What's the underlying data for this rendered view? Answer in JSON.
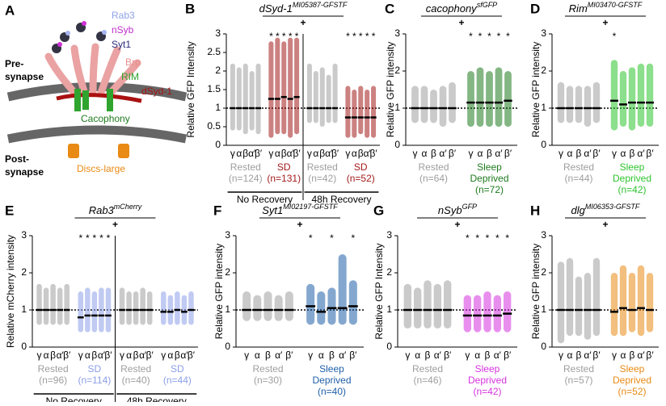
{
  "diagram": {
    "panel": "A",
    "vesicle_proteins": [
      "Rab3",
      "nSyb",
      "Syt1"
    ],
    "pre": [
      "Pre-",
      "synapse"
    ],
    "brp": "Brp",
    "rim": "RIM",
    "dsyd": "dSyd-1",
    "cacophony": "Cacophony",
    "post": [
      "Post-",
      "synapse"
    ],
    "dlg": "Discs-large"
  },
  "chart_data": [
    {
      "type": "dot",
      "panel": "B",
      "title": "dSyd-1",
      "title_sup": "MI05387-GFSTF",
      "plus": "+",
      "ylabel": "Relative GFP Intensity",
      "ylim": [
        0,
        3
      ],
      "yticks": [
        0,
        0.5,
        1,
        1.5,
        2,
        2.5,
        3
      ],
      "refline": 1,
      "categories": [
        "γ",
        "α",
        "β",
        "α′",
        "β′"
      ],
      "groups": [
        {
          "name": [
            "Rested"
          ],
          "n": "(n=124)",
          "color": "#9e9e9e",
          "means": [
            1,
            1,
            1,
            1,
            1
          ],
          "lows": [
            0.4,
            0.4,
            0.3,
            0.4,
            0.3
          ],
          "highs": [
            2.2,
            2.1,
            2.2,
            2.0,
            2.2
          ]
        },
        {
          "name": [
            "SD"
          ],
          "n": "(n=131)",
          "color": "#a31a1a",
          "means": [
            1.25,
            1.25,
            1.3,
            1.25,
            1.3
          ],
          "lows": [
            0.2,
            0.3,
            0.3,
            0.2,
            0.3
          ],
          "highs": [
            2.8,
            2.9,
            2.8,
            2.9,
            2.9
          ],
          "stars": [
            "*",
            "*",
            "*",
            "*",
            "*"
          ]
        },
        {
          "name": [
            "Rested"
          ],
          "n": "(n=42)",
          "color": "#9e9e9e",
          "means": [
            1,
            1,
            1,
            1,
            1
          ],
          "lows": [
            0.6,
            0.6,
            0.5,
            0.6,
            0.6
          ],
          "highs": [
            2.2,
            2.0,
            2.1,
            1.9,
            2.2
          ]
        },
        {
          "name": [
            "SD"
          ],
          "n": "(n=52)",
          "color": "#a31a1a",
          "means": [
            0.75,
            0.75,
            0.75,
            0.75,
            0.75
          ],
          "lows": [
            0.2,
            0.2,
            0.3,
            0.2,
            0.2
          ],
          "highs": [
            1.6,
            1.5,
            1.6,
            1.5,
            1.6
          ],
          "stars": [
            "*",
            "*",
            "*",
            "*",
            "*"
          ]
        }
      ],
      "sections": [
        {
          "label": "No Recovery",
          "groups": [
            0,
            1
          ]
        },
        {
          "label": "48h Recovery",
          "groups": [
            2,
            3
          ]
        }
      ]
    },
    {
      "type": "dot",
      "panel": "C",
      "title": "cacophony",
      "title_sup": "sfGFP",
      "plus": "+",
      "ylabel": "Relative GFP intensity",
      "ylim": [
        0,
        3
      ],
      "yticks": [
        0,
        1,
        2,
        3
      ],
      "refline": 1,
      "categories": [
        "γ",
        "α",
        "β",
        "α′",
        "β′"
      ],
      "groups": [
        {
          "name": [
            "Rested"
          ],
          "n": "(n=64)",
          "color": "#9e9e9e",
          "means": [
            1,
            1,
            1,
            1,
            1
          ],
          "lows": [
            0.6,
            0.6,
            0.6,
            0.5,
            0.6
          ],
          "highs": [
            1.6,
            1.6,
            1.5,
            1.6,
            1.7
          ]
        },
        {
          "name": [
            "Sleep",
            "Deprived"
          ],
          "n": "(n=72)",
          "color": "#1e7a1e",
          "means": [
            1.15,
            1.15,
            1.15,
            1.15,
            1.2
          ],
          "lows": [
            0.5,
            0.5,
            0.5,
            0.5,
            0.5
          ],
          "highs": [
            2.0,
            2.1,
            2.0,
            2.1,
            2.0
          ],
          "stars": [
            "*",
            "*",
            "*",
            "*",
            "*"
          ]
        }
      ]
    },
    {
      "type": "dot",
      "panel": "D",
      "title": "Rim",
      "title_sup": "MI03470-GFSTF",
      "plus": "+",
      "ylabel": "Relative GFP intensity",
      "ylim": [
        0,
        3
      ],
      "yticks": [
        0,
        1,
        2,
        3
      ],
      "refline": 1,
      "categories": [
        "γ",
        "α",
        "β",
        "α′",
        "β′"
      ],
      "groups": [
        {
          "name": [
            "Rested"
          ],
          "n": "(n=44)",
          "color": "#9e9e9e",
          "means": [
            1,
            1,
            1,
            1,
            1
          ],
          "lows": [
            0.6,
            0.6,
            0.6,
            0.5,
            0.6
          ],
          "highs": [
            1.7,
            1.6,
            1.6,
            1.6,
            1.7
          ]
        },
        {
          "name": [
            "Sleep",
            "Deprived"
          ],
          "n": "(n=42)",
          "color": "#2ec42e",
          "means": [
            1.2,
            1.1,
            1.15,
            1.15,
            1.15
          ],
          "lows": [
            0.4,
            0.5,
            0.4,
            0.5,
            0.5
          ],
          "highs": [
            2.3,
            2.0,
            2.1,
            2.2,
            2.2
          ],
          "stars": [
            "*",
            null,
            null,
            null,
            null
          ]
        }
      ]
    },
    {
      "type": "dot",
      "panel": "E",
      "title": "Rab3",
      "title_sup": "mCherry",
      "plus": "+",
      "ylabel": "Relative mCherry intensity",
      "ylim": [
        0,
        3
      ],
      "yticks": [
        0,
        1,
        2,
        3
      ],
      "refline": 1,
      "categories": [
        "γ",
        "α",
        "β",
        "α′",
        "β′"
      ],
      "groups": [
        {
          "name": [
            "Rested"
          ],
          "n": "(n=96)",
          "color": "#9e9e9e",
          "means": [
            1,
            1,
            1,
            1,
            1
          ],
          "lows": [
            0.6,
            0.6,
            0.6,
            0.6,
            0.6
          ],
          "highs": [
            1.7,
            1.6,
            1.7,
            1.6,
            1.7
          ]
        },
        {
          "name": [
            "SD"
          ],
          "n": "(n=114)",
          "color": "#8c9ee8",
          "means": [
            0.8,
            0.85,
            0.85,
            0.85,
            0.85
          ],
          "lows": [
            0.4,
            0.4,
            0.4,
            0.4,
            0.4
          ],
          "highs": [
            1.5,
            1.6,
            1.5,
            1.6,
            1.6
          ],
          "stars": [
            "*",
            "*",
            "*",
            "*",
            "*"
          ]
        },
        {
          "name": [
            "Rested"
          ],
          "n": "(n=40)",
          "color": "#9e9e9e",
          "means": [
            1,
            1,
            1,
            1,
            1
          ],
          "lows": [
            0.6,
            0.6,
            0.6,
            0.6,
            0.6
          ],
          "highs": [
            1.6,
            1.5,
            1.5,
            1.6,
            1.5
          ]
        },
        {
          "name": [
            "SD"
          ],
          "n": "(n=44)",
          "color": "#8c9ee8",
          "means": [
            0.95,
            0.95,
            1,
            0.95,
            1
          ],
          "lows": [
            0.6,
            0.6,
            0.6,
            0.6,
            0.6
          ],
          "highs": [
            1.5,
            1.4,
            1.5,
            1.4,
            1.5
          ]
        }
      ],
      "sections": [
        {
          "label": "No Recovery",
          "groups": [
            0,
            1
          ]
        },
        {
          "label": "48h Recovery",
          "groups": [
            2,
            3
          ]
        }
      ]
    },
    {
      "type": "dot",
      "panel": "F",
      "title": "Syt1",
      "title_sup": "MI02197-GFSTF",
      "plus": "+",
      "ylabel": "Relative GFP intensity",
      "ylim": [
        0,
        3
      ],
      "yticks": [
        0,
        1,
        2,
        3
      ],
      "refline": 1,
      "categories": [
        "γ",
        "α",
        "β",
        "α′",
        "β′"
      ],
      "groups": [
        {
          "name": [
            "Rested"
          ],
          "n": "(n=30)",
          "color": "#9e9e9e",
          "means": [
            1,
            1,
            1,
            1,
            1
          ],
          "lows": [
            0.7,
            0.7,
            0.7,
            0.7,
            0.7
          ],
          "highs": [
            1.5,
            1.4,
            1.5,
            1.4,
            1.5
          ]
        },
        {
          "name": [
            "Sleep",
            "Deprived"
          ],
          "n": "(n=40)",
          "color": "#1f5fa8",
          "means": [
            1.1,
            0.95,
            1.05,
            1.05,
            1.1
          ],
          "lows": [
            0.6,
            0.6,
            0.6,
            0.6,
            0.6
          ],
          "highs": [
            1.7,
            1.5,
            1.6,
            2.5,
            1.8
          ],
          "stars": [
            "*",
            null,
            "*",
            null,
            "*"
          ]
        }
      ]
    },
    {
      "type": "dot",
      "panel": "G",
      "title": "nSyb",
      "title_sup": "GFP",
      "plus": "+",
      "ylabel": "Relative GFP Intensity",
      "ylim": [
        0,
        3
      ],
      "yticks": [
        0,
        1,
        2,
        3
      ],
      "refline": 1,
      "categories": [
        "γ",
        "α",
        "β",
        "α′",
        "β′"
      ],
      "groups": [
        {
          "name": [
            "Rested"
          ],
          "n": "(n=46)",
          "color": "#9e9e9e",
          "means": [
            1,
            1,
            1,
            1,
            1
          ],
          "lows": [
            0.5,
            0.5,
            0.5,
            0.5,
            0.5
          ],
          "highs": [
            1.7,
            1.6,
            1.8,
            1.7,
            1.8
          ]
        },
        {
          "name": [
            "Sleep",
            "Deprived"
          ],
          "n": "(n=42)",
          "color": "#d633e0",
          "means": [
            0.85,
            0.85,
            0.85,
            0.85,
            0.9
          ],
          "lows": [
            0.4,
            0.4,
            0.4,
            0.4,
            0.4
          ],
          "highs": [
            1.4,
            1.4,
            1.5,
            1.4,
            1.5
          ],
          "stars": [
            "*",
            "*",
            "*",
            "*",
            "*"
          ]
        }
      ]
    },
    {
      "type": "dot",
      "panel": "H",
      "title": "dlg",
      "title_sup": "MI06353-GFSTF",
      "plus": "+",
      "ylabel": "Relative GFP intensity",
      "ylim": [
        0,
        3
      ],
      "yticks": [
        0,
        1,
        2,
        3
      ],
      "refline": 1,
      "categories": [
        "γ",
        "α",
        "β",
        "α′",
        "β′"
      ],
      "groups": [
        {
          "name": [
            "Rested"
          ],
          "n": "(n=57)",
          "color": "#9e9e9e",
          "means": [
            1,
            1,
            1,
            1,
            1
          ],
          "lows": [
            0.1,
            0.3,
            0.3,
            0.2,
            0.3
          ],
          "highs": [
            2.3,
            2.4,
            1.9,
            2.0,
            2.4
          ]
        },
        {
          "name": [
            "Sleep",
            "Deprived"
          ],
          "n": "(n=52)",
          "color": "#e88a14",
          "means": [
            0.95,
            1.05,
            1,
            1.05,
            1
          ],
          "lows": [
            0.3,
            0.3,
            0.4,
            0.3,
            0.4
          ],
          "highs": [
            2.0,
            2.2,
            2.0,
            2.2,
            2.0
          ]
        }
      ]
    }
  ]
}
